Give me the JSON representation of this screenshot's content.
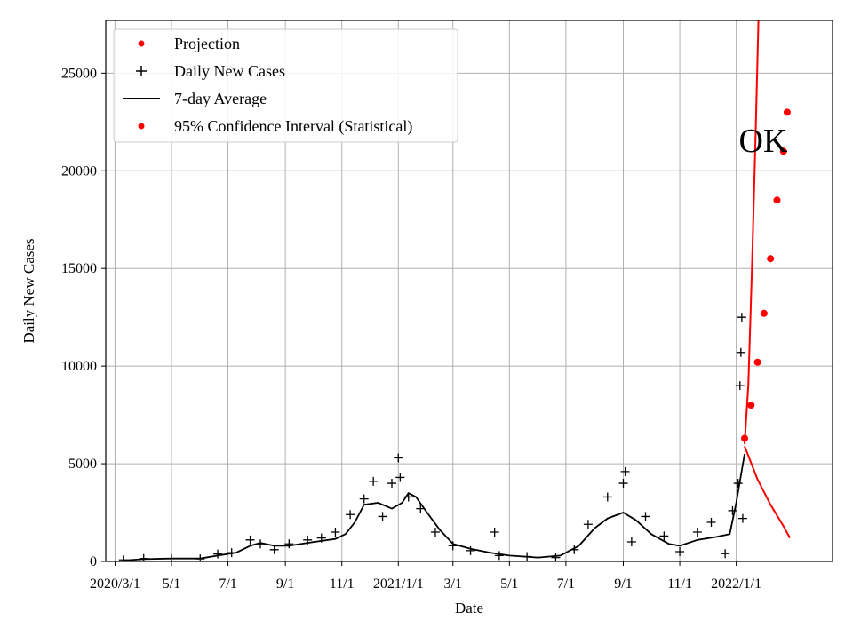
{
  "chart_data": {
    "type": "line",
    "xlabel": "Date",
    "ylabel": "Daily New Cases",
    "annotation": "OK",
    "xlim": [
      "2020-02-20",
      "2022-04-15"
    ],
    "ylim": [
      0,
      27700
    ],
    "grid": true,
    "legend_position": "top-left",
    "x_ticks": [
      {
        "date": "2020-03-01",
        "label": "2020/3/1"
      },
      {
        "date": "2020-05-01",
        "label": "5/1"
      },
      {
        "date": "2020-07-01",
        "label": "7/1"
      },
      {
        "date": "2020-09-01",
        "label": "9/1"
      },
      {
        "date": "2020-11-01",
        "label": "11/1"
      },
      {
        "date": "2021-01-01",
        "label": "2021/1/1"
      },
      {
        "date": "2021-03-01",
        "label": "3/1"
      },
      {
        "date": "2021-05-01",
        "label": "5/1"
      },
      {
        "date": "2021-07-01",
        "label": "7/1"
      },
      {
        "date": "2021-09-01",
        "label": "9/1"
      },
      {
        "date": "2021-11-01",
        "label": "11/1"
      },
      {
        "date": "2022-01-01",
        "label": "2022/1/1"
      }
    ],
    "y_ticks": [
      0,
      5000,
      10000,
      15000,
      20000,
      25000
    ],
    "legend": [
      {
        "label": "Projection",
        "marker": "dot",
        "color": "#ff0000"
      },
      {
        "label": "Daily New Cases",
        "marker": "plus",
        "color": "#000000"
      },
      {
        "label": "7-day Average",
        "marker": "line",
        "color": "#000000"
      },
      {
        "label": "95% Confidence Interval (Statistical)",
        "marker": "dot",
        "color": "#ff0000"
      }
    ],
    "seven_day_average": [
      [
        "2020-03-10",
        50
      ],
      [
        "2020-04-01",
        120
      ],
      [
        "2020-05-01",
        150
      ],
      [
        "2020-06-01",
        150
      ],
      [
        "2020-06-20",
        300
      ],
      [
        "2020-07-10",
        450
      ],
      [
        "2020-07-25",
        800
      ],
      [
        "2020-08-05",
        950
      ],
      [
        "2020-08-20",
        800
      ],
      [
        "2020-09-05",
        800
      ],
      [
        "2020-09-25",
        950
      ],
      [
        "2020-10-10",
        1050
      ],
      [
        "2020-10-25",
        1150
      ],
      [
        "2020-11-05",
        1400
      ],
      [
        "2020-11-15",
        2000
      ],
      [
        "2020-11-25",
        2900
      ],
      [
        "2020-12-10",
        3000
      ],
      [
        "2020-12-25",
        2700
      ],
      [
        "2021-01-05",
        3000
      ],
      [
        "2021-01-12",
        3500
      ],
      [
        "2021-01-20",
        3300
      ],
      [
        "2021-02-01",
        2500
      ],
      [
        "2021-02-15",
        1600
      ],
      [
        "2021-03-01",
        900
      ],
      [
        "2021-03-20",
        650
      ],
      [
        "2021-04-10",
        450
      ],
      [
        "2021-05-01",
        300
      ],
      [
        "2021-06-01",
        200
      ],
      [
        "2021-06-25",
        300
      ],
      [
        "2021-07-15",
        800
      ],
      [
        "2021-08-01",
        1700
      ],
      [
        "2021-08-15",
        2200
      ],
      [
        "2021-09-01",
        2500
      ],
      [
        "2021-09-15",
        2100
      ],
      [
        "2021-10-01",
        1400
      ],
      [
        "2021-10-20",
        900
      ],
      [
        "2021-11-01",
        800
      ],
      [
        "2021-11-20",
        1100
      ],
      [
        "2021-12-10",
        1250
      ],
      [
        "2021-12-25",
        1400
      ],
      [
        "2022-01-01",
        3000
      ],
      [
        "2022-01-10",
        5500
      ]
    ],
    "daily_new_cases": [
      [
        "2020-03-10",
        80
      ],
      [
        "2020-04-01",
        150
      ],
      [
        "2020-05-01",
        150
      ],
      [
        "2020-06-01",
        130
      ],
      [
        "2020-06-20",
        380
      ],
      [
        "2020-07-05",
        450
      ],
      [
        "2020-07-25",
        1100
      ],
      [
        "2020-08-05",
        900
      ],
      [
        "2020-08-20",
        600
      ],
      [
        "2020-09-05",
        900
      ],
      [
        "2020-09-25",
        1100
      ],
      [
        "2020-10-10",
        1200
      ],
      [
        "2020-10-25",
        1500
      ],
      [
        "2020-11-10",
        2400
      ],
      [
        "2020-11-25",
        3200
      ],
      [
        "2020-12-05",
        4100
      ],
      [
        "2020-12-15",
        2300
      ],
      [
        "2020-12-25",
        4000
      ],
      [
        "2021-01-01",
        5300
      ],
      [
        "2021-01-03",
        4300
      ],
      [
        "2021-01-12",
        3300
      ],
      [
        "2021-01-25",
        2700
      ],
      [
        "2021-02-10",
        1500
      ],
      [
        "2021-03-01",
        800
      ],
      [
        "2021-03-20",
        550
      ],
      [
        "2021-04-15",
        1500
      ],
      [
        "2021-04-20",
        300
      ],
      [
        "2021-05-20",
        250
      ],
      [
        "2021-06-20",
        200
      ],
      [
        "2021-07-10",
        600
      ],
      [
        "2021-07-25",
        1900
      ],
      [
        "2021-08-15",
        3300
      ],
      [
        "2021-09-01",
        4000
      ],
      [
        "2021-09-03",
        4600
      ],
      [
        "2021-09-10",
        1000
      ],
      [
        "2021-09-25",
        2300
      ],
      [
        "2021-10-15",
        1300
      ],
      [
        "2021-11-01",
        500
      ],
      [
        "2021-11-20",
        1500
      ],
      [
        "2021-12-05",
        2000
      ],
      [
        "2021-12-20",
        400
      ],
      [
        "2021-12-28",
        2600
      ],
      [
        "2022-01-03",
        4000
      ],
      [
        "2022-01-05",
        9000
      ],
      [
        "2022-01-06",
        10700
      ],
      [
        "2022-01-07",
        12500
      ],
      [
        "2022-01-08",
        2200
      ]
    ],
    "projection": [
      [
        "2022-01-10",
        6300
      ],
      [
        "2022-01-17",
        8000
      ],
      [
        "2022-01-24",
        10200
      ],
      [
        "2022-01-31",
        12700
      ],
      [
        "2022-02-07",
        15500
      ],
      [
        "2022-02-14",
        18500
      ],
      [
        "2022-02-21",
        21000
      ],
      [
        "2022-02-25",
        23000
      ]
    ],
    "confidence_interval_upper": [
      [
        "2022-01-10",
        6000
      ],
      [
        "2022-01-14",
        9000
      ],
      [
        "2022-01-18",
        15000
      ],
      [
        "2022-01-22",
        22000
      ],
      [
        "2022-01-25",
        27700
      ]
    ],
    "confidence_interval_lower": [
      [
        "2022-01-10",
        5900
      ],
      [
        "2022-01-24",
        4200
      ],
      [
        "2022-02-07",
        2900
      ],
      [
        "2022-02-21",
        1800
      ],
      [
        "2022-02-28",
        1200
      ]
    ]
  }
}
